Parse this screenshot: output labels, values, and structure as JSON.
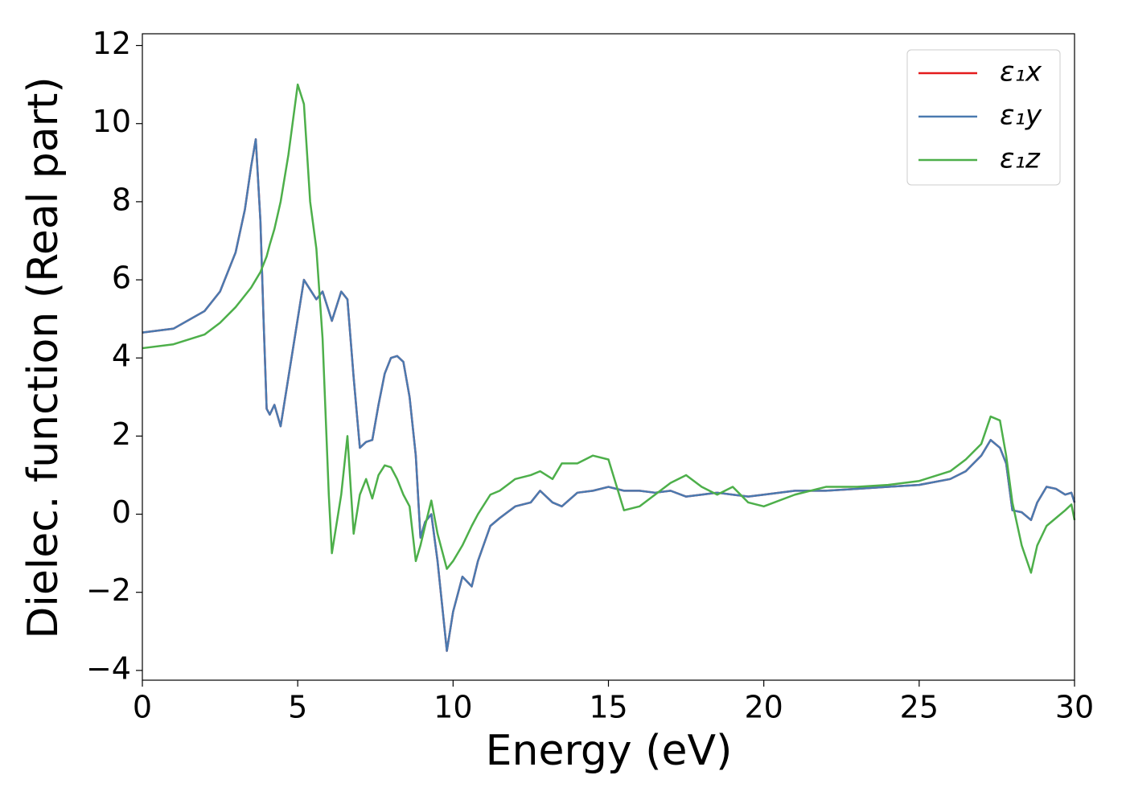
{
  "chart_data": {
    "type": "line",
    "xlabel": "Energy (eV)",
    "ylabel": "Dielec. function (Real part)",
    "x": [
      0,
      1,
      2,
      2.5,
      3,
      3.3,
      3.5,
      3.65,
      3.8,
      3.9,
      4.0,
      4.1,
      4.25,
      4.45,
      4.7,
      5.0,
      5.2,
      5.4,
      5.6,
      5.8,
      6.0,
      6.1,
      6.4,
      6.6,
      6.8,
      7.0,
      7.2,
      7.4,
      7.6,
      7.8,
      8.0,
      8.2,
      8.4,
      8.6,
      8.8,
      8.95,
      9.1,
      9.3,
      9.5,
      9.8,
      10.0,
      10.3,
      10.6,
      10.8,
      11.2,
      11.5,
      12,
      12.5,
      12.8,
      13.2,
      13.5,
      14,
      14.5,
      15,
      15.5,
      16,
      16.5,
      17,
      17.5,
      18,
      18.5,
      19,
      19.5,
      20,
      21,
      22,
      23,
      24,
      25,
      26,
      26.5,
      27,
      27.3,
      27.6,
      27.8,
      28,
      28.3,
      28.6,
      28.8,
      29.1,
      29.4,
      29.7,
      29.9,
      30
    ],
    "series": [
      {
        "name": "ε₁x",
        "color": "#e41a1c",
        "values": [
          4.65,
          4.75,
          5.2,
          5.7,
          6.7,
          7.8,
          8.9,
          9.6,
          7.5,
          5,
          2.7,
          2.55,
          2.8,
          2.25,
          3.5,
          5.0,
          6.0,
          5.75,
          5.5,
          5.7,
          5.2,
          4.95,
          5.7,
          5.5,
          3.5,
          1.7,
          1.85,
          1.9,
          2.8,
          3.6,
          4.0,
          4.05,
          3.9,
          3.0,
          1.5,
          -0.6,
          -0.2,
          0.0,
          -1.2,
          -3.5,
          -2.5,
          -1.6,
          -1.85,
          -1.2,
          -0.3,
          -0.1,
          0.2,
          0.3,
          0.6,
          0.3,
          0.2,
          0.55,
          0.6,
          0.7,
          0.6,
          0.6,
          0.55,
          0.6,
          0.45,
          0.5,
          0.55,
          0.5,
          0.45,
          0.5,
          0.6,
          0.6,
          0.65,
          0.7,
          0.75,
          0.9,
          1.1,
          1.5,
          1.9,
          1.7,
          1.3,
          0.1,
          0.05,
          -0.15,
          0.3,
          0.7,
          0.65,
          0.5,
          0.55,
          0.3
        ]
      },
      {
        "name": "ε₁y",
        "color": "#4a7ab0",
        "values": [
          4.65,
          4.75,
          5.2,
          5.7,
          6.7,
          7.8,
          8.9,
          9.6,
          7.5,
          5,
          2.7,
          2.55,
          2.8,
          2.25,
          3.5,
          5.0,
          6.0,
          5.75,
          5.5,
          5.7,
          5.2,
          4.95,
          5.7,
          5.5,
          3.5,
          1.7,
          1.85,
          1.9,
          2.8,
          3.6,
          4.0,
          4.05,
          3.9,
          3.0,
          1.5,
          -0.6,
          -0.2,
          0.0,
          -1.2,
          -3.5,
          -2.5,
          -1.6,
          -1.85,
          -1.2,
          -0.3,
          -0.1,
          0.2,
          0.3,
          0.6,
          0.3,
          0.2,
          0.55,
          0.6,
          0.7,
          0.6,
          0.6,
          0.55,
          0.6,
          0.45,
          0.5,
          0.55,
          0.5,
          0.45,
          0.5,
          0.6,
          0.6,
          0.65,
          0.7,
          0.75,
          0.9,
          1.1,
          1.5,
          1.9,
          1.7,
          1.3,
          0.1,
          0.05,
          -0.15,
          0.3,
          0.7,
          0.65,
          0.5,
          0.55,
          0.3
        ]
      },
      {
        "name": "ε₁z",
        "color": "#4daf4a",
        "values": [
          4.25,
          4.35,
          4.6,
          4.9,
          5.3,
          5.6,
          5.8,
          6.0,
          6.2,
          6.4,
          6.6,
          6.9,
          7.3,
          8.0,
          9.2,
          11.0,
          10.5,
          8.0,
          6.8,
          4.5,
          0.5,
          -1.0,
          0.5,
          2.0,
          -0.5,
          0.5,
          0.9,
          0.4,
          1.0,
          1.25,
          1.2,
          0.9,
          0.5,
          0.2,
          -1.2,
          -0.8,
          -0.3,
          0.35,
          -0.5,
          -1.4,
          -1.2,
          -0.8,
          -0.3,
          0.0,
          0.5,
          0.6,
          0.9,
          1.0,
          1.1,
          0.9,
          1.3,
          1.3,
          1.5,
          1.4,
          0.1,
          0.2,
          0.5,
          0.8,
          1.0,
          0.7,
          0.5,
          0.7,
          0.3,
          0.2,
          0.5,
          0.7,
          0.7,
          0.75,
          0.85,
          1.1,
          1.4,
          1.8,
          2.5,
          2.4,
          1.5,
          0.3,
          -0.8,
          -1.5,
          -0.8,
          -0.3,
          -0.1,
          0.1,
          0.25,
          -0.15
        ]
      }
    ],
    "xlim": [
      0,
      30
    ],
    "xticks": [
      0,
      5,
      10,
      15,
      20,
      25,
      30
    ],
    "ylim": [
      -4.25,
      12.3
    ],
    "yticks": [
      {
        "value": -4,
        "label": "−4"
      },
      {
        "value": -2,
        "label": "−2"
      },
      0,
      2,
      4,
      6,
      8,
      10,
      12
    ],
    "grid": false,
    "legend": "upper right"
  }
}
